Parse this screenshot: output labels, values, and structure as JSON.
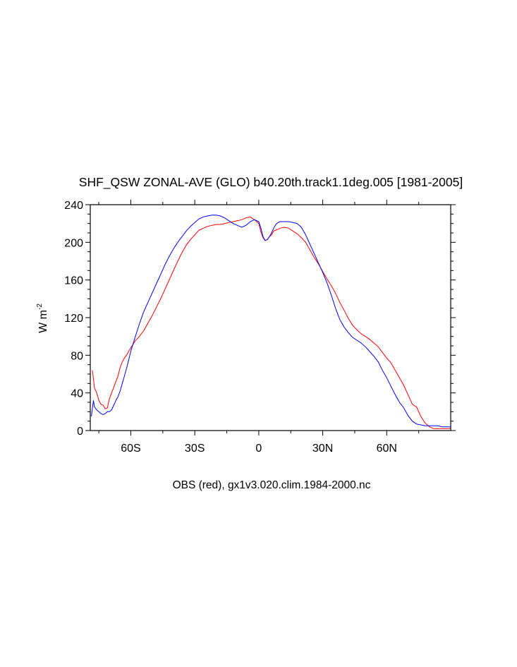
{
  "chart_data": {
    "type": "line",
    "title": "SHF_QSW ZONAL-AVE (GLO) b40.20th.track1.1deg.005 [1981-2005]",
    "subtitle": "OBS (red), gx1v3.020.clim.1984-2000.nc",
    "ylabel_main": "W m",
    "ylabel_sup": "-2",
    "xlabel": "",
    "xlim": [
      -79,
      90
    ],
    "ylim": [
      0,
      240
    ],
    "grid": false,
    "x_ticks": [
      {
        "value": -60,
        "label": "60S"
      },
      {
        "value": -30,
        "label": "30S"
      },
      {
        "value": 0,
        "label": "0"
      },
      {
        "value": 30,
        "label": "30N"
      },
      {
        "value": 60,
        "label": "60N"
      }
    ],
    "y_ticks": [
      0,
      40,
      80,
      120,
      160,
      200,
      240
    ],
    "series": [
      {
        "color": "#ff0000",
        "x": [
          -78,
          -77,
          -76,
          -75,
          -74,
          -73,
          -72,
          -71,
          -70,
          -69,
          -68,
          -67,
          -66,
          -65,
          -64,
          -63,
          -62,
          -61,
          -60,
          -58,
          -56,
          -54,
          -52,
          -50,
          -48,
          -46,
          -44,
          -42,
          -40,
          -38,
          -36,
          -34,
          -32,
          -30,
          -28,
          -26,
          -24,
          -22,
          -20,
          -18,
          -16,
          -14,
          -12,
          -10,
          -8,
          -6,
          -4,
          -2,
          0,
          1,
          2,
          3,
          4,
          5,
          6,
          7,
          8,
          9,
          10,
          12,
          14,
          16,
          18,
          20,
          22,
          24,
          26,
          28,
          30,
          32,
          34,
          36,
          38,
          40,
          42,
          44,
          46,
          48,
          50,
          52,
          54,
          56,
          58,
          60,
          62,
          64,
          66,
          68,
          70,
          72,
          74,
          76,
          78,
          80,
          82,
          84,
          86,
          88,
          90
        ],
        "y": [
          64,
          45,
          40,
          32,
          28,
          27,
          23,
          24,
          34,
          40,
          46,
          52,
          58,
          67,
          73,
          77,
          80,
          84,
          88,
          95,
          100,
          106,
          114,
          122,
          131,
          140,
          150,
          160,
          170,
          180,
          189,
          197,
          203,
          208,
          213,
          215,
          217,
          218,
          219,
          219,
          220,
          221,
          222,
          223,
          224,
          226,
          227,
          224,
          220,
          211,
          205,
          202,
          203,
          206,
          208,
          212,
          213,
          214,
          215,
          216,
          215,
          212,
          209,
          205,
          200,
          192,
          184,
          177,
          169,
          161,
          154,
          146,
          136,
          128,
          119,
          112,
          107,
          103,
          100,
          97,
          93,
          89,
          83,
          77,
          72,
          64,
          56,
          48,
          38,
          28,
          25,
          15,
          8,
          4,
          2,
          2,
          2,
          2,
          2
        ]
      },
      {
        "color": "#0000ff",
        "x": [
          -78.5,
          -77.5,
          -77,
          -76,
          -75,
          -74,
          -73,
          -72,
          -71,
          -70,
          -69,
          -68,
          -67,
          -66,
          -65,
          -64,
          -63,
          -62,
          -61,
          -60,
          -58,
          -56,
          -54,
          -52,
          -50,
          -48,
          -46,
          -44,
          -42,
          -40,
          -38,
          -36,
          -34,
          -32,
          -30,
          -28,
          -26,
          -24,
          -22,
          -20,
          -18,
          -16,
          -14,
          -12,
          -10,
          -8,
          -6,
          -4,
          -2,
          0,
          1,
          2,
          3,
          4,
          5,
          6,
          7,
          8,
          9,
          10,
          12,
          14,
          16,
          18,
          20,
          22,
          24,
          26,
          28,
          30,
          32,
          34,
          36,
          38,
          40,
          42,
          44,
          46,
          48,
          50,
          52,
          54,
          56,
          58,
          60,
          62,
          64,
          66,
          68,
          70,
          72,
          74,
          76,
          78,
          80,
          82,
          84,
          86,
          88,
          90
        ],
        "y": [
          15,
          32,
          25,
          22,
          20,
          18,
          17,
          18,
          20,
          20,
          22,
          27,
          32,
          36,
          42,
          50,
          58,
          66,
          75,
          84,
          99,
          113,
          126,
          136,
          146,
          156,
          166,
          176,
          185,
          193,
          200,
          206,
          212,
          217,
          221,
          225,
          227,
          228,
          229,
          229,
          228,
          226,
          223,
          220,
          218,
          216,
          218,
          222,
          224,
          222,
          215,
          206,
          202,
          203,
          206,
          210,
          215,
          219,
          221,
          222,
          222,
          222,
          221,
          220,
          216,
          208,
          198,
          188,
          178,
          168,
          157,
          144,
          130,
          118,
          110,
          104,
          99,
          96,
          93,
          89,
          84,
          79,
          73,
          64,
          56,
          47,
          38,
          30,
          24,
          16,
          10,
          7,
          6,
          5,
          5,
          5,
          5,
          4,
          4,
          4
        ]
      }
    ]
  }
}
